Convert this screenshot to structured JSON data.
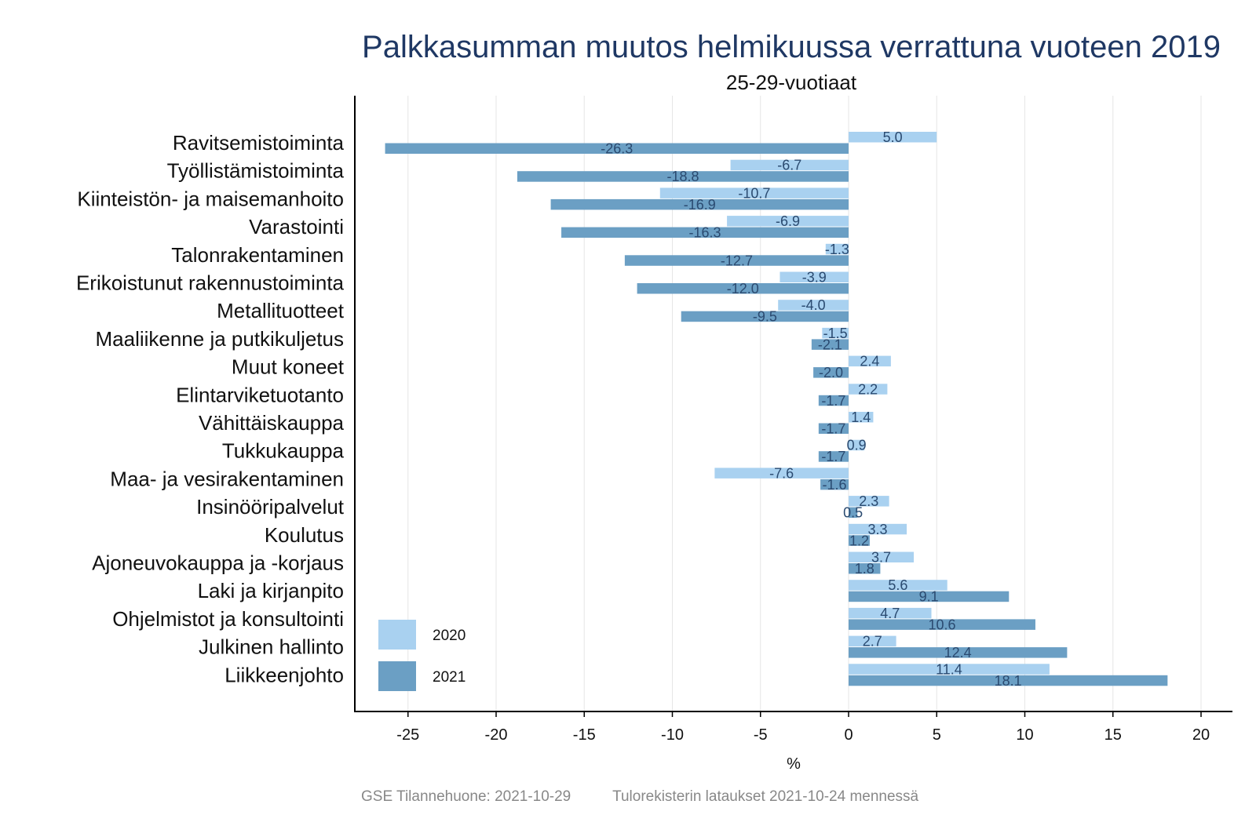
{
  "chart_data": {
    "type": "bar",
    "orientation": "horizontal",
    "title": "Palkkasumman muutos helmikuussa verrattuna vuoteen 2019",
    "subtitle": "25-29-vuotiaat",
    "xlabel": "%",
    "ylabel": "",
    "xlim": [
      -28.5,
      21.5
    ],
    "xticks": [
      -25,
      -20,
      -15,
      -10,
      -5,
      0,
      5,
      10,
      15,
      20
    ],
    "xtick_labels": [
      "-25",
      "-20",
      "-15",
      "-10",
      "-5",
      "0",
      "5",
      "10",
      "15",
      "20"
    ],
    "grid": "vertical",
    "legend_position": "bottom-left",
    "categories": [
      "Ravitsemistoiminta",
      "Työllistämistoiminta",
      "Kiinteistön- ja maisemanhoito",
      "Varastointi",
      "Talonrakentaminen",
      "Erikoistunut rakennustoiminta",
      "Metallituotteet",
      "Maaliikenne ja putkikuljetus",
      "Muut koneet",
      "Elintarviketuotanto",
      "Vähittäiskauppa",
      "Tukkukauppa",
      "Maa- ja vesirakentaminen",
      "Insinööripalvelut",
      "Koulutus",
      "Ajoneuvokauppa ja -korjaus",
      "Laki ja kirjanpito",
      "Ohjelmistot ja konsultointi",
      "Julkinen hallinto",
      "Liikkeenjohto"
    ],
    "series": [
      {
        "name": "2020",
        "color": "#a9d1f0",
        "values": [
          5.0,
          -6.7,
          -10.7,
          -6.9,
          -1.3,
          -3.9,
          -4.0,
          -1.5,
          2.4,
          2.2,
          1.4,
          0.9,
          -7.6,
          2.3,
          3.3,
          3.7,
          5.6,
          4.7,
          2.7,
          11.4
        ],
        "labels": [
          "5.0",
          "-6.7",
          "-10.7",
          "-6.9",
          "-1.3",
          "-3.9",
          "-4.0",
          "-1.5",
          "2.4",
          "2.2",
          "1.4",
          "0.9",
          "-7.6",
          "2.3",
          "3.3",
          "3.7",
          "5.6",
          "4.7",
          "2.7",
          "11.4"
        ]
      },
      {
        "name": "2021",
        "color": "#6b9fc4",
        "values": [
          -26.3,
          -18.8,
          -16.9,
          -16.3,
          -12.7,
          -12.0,
          -9.5,
          -2.1,
          -2.0,
          -1.7,
          -1.7,
          -1.7,
          -1.6,
          0.5,
          1.2,
          1.8,
          9.1,
          10.6,
          12.4,
          18.1
        ],
        "labels": [
          "-26.3",
          "-18.8",
          "-16.9",
          "-16.3",
          "-12.7",
          "-12.0",
          "-9.5",
          "-2.1",
          "-2.0",
          "-1.7",
          "-1.7",
          "-1.7",
          "-1.6",
          "0.5",
          "1.2",
          "1.8",
          "9.1",
          "10.6",
          "12.4",
          "18.1"
        ]
      }
    ]
  },
  "footer": {
    "source": "GSE Tilannehuone: 2021-10-29",
    "note": "Tulorekisterin lataukset 2021-10-24 mennessä"
  },
  "colors": {
    "title": "#1f3864",
    "grid": "#e6e6e6",
    "footer": "#888888"
  }
}
